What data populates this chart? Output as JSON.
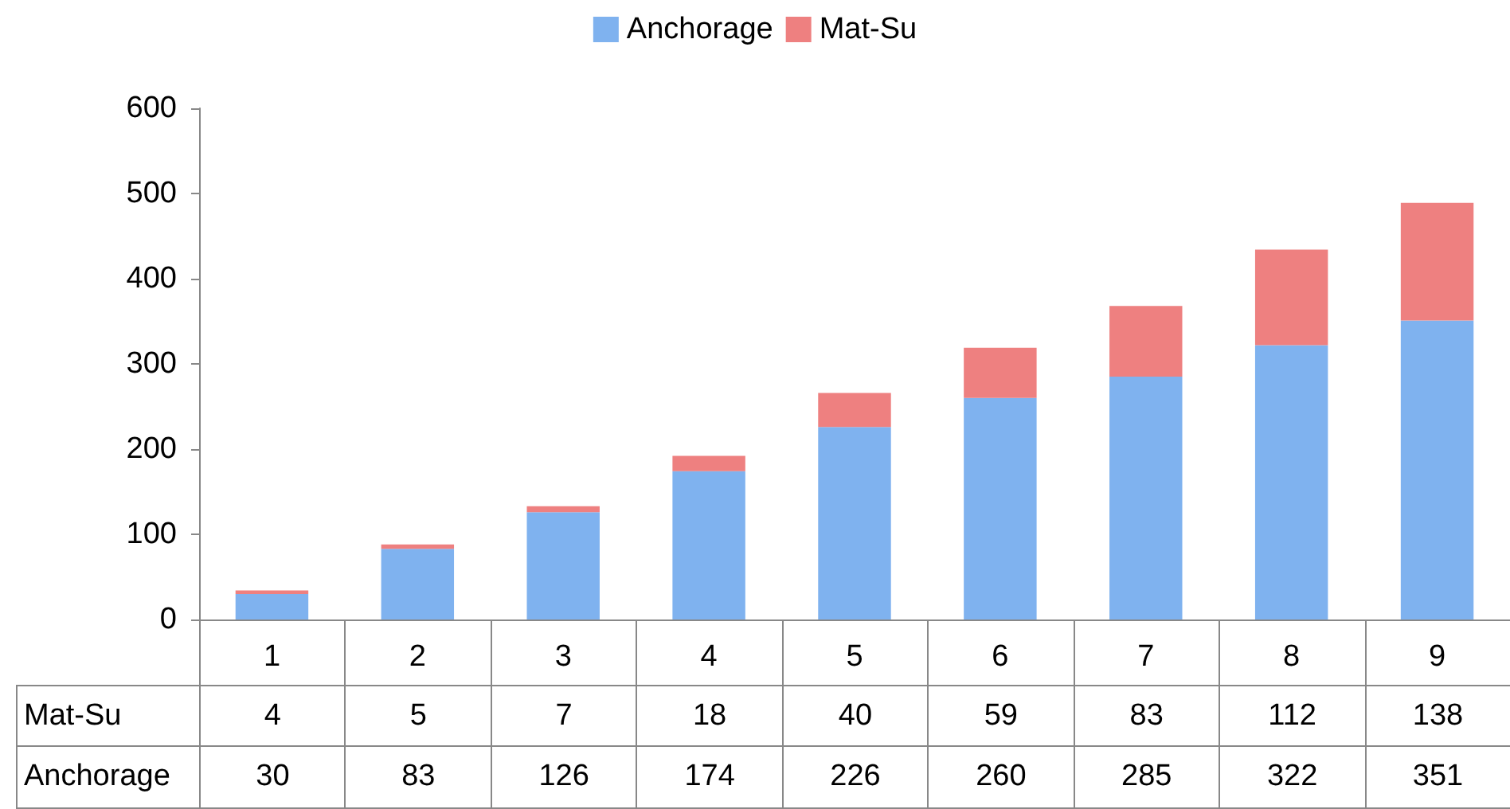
{
  "chart_data": {
    "type": "bar",
    "stacked": true,
    "data_labels": true,
    "legend": "top",
    "grid": false,
    "categories": [
      "1",
      "2",
      "3",
      "4",
      "5",
      "6",
      "7",
      "8",
      "9"
    ],
    "series": [
      {
        "name": "Anchorage",
        "color": "#7fb2ef",
        "values": [
          30,
          83,
          126,
          174,
          226,
          260,
          285,
          322,
          351
        ]
      },
      {
        "name": "Mat-Su",
        "color": "#ee8080",
        "values": [
          4,
          5,
          7,
          18,
          40,
          59,
          83,
          112,
          138
        ]
      }
    ],
    "ylim": [
      0,
      600
    ],
    "yticks": [
      0,
      100,
      200,
      300,
      400,
      500,
      600
    ]
  }
}
